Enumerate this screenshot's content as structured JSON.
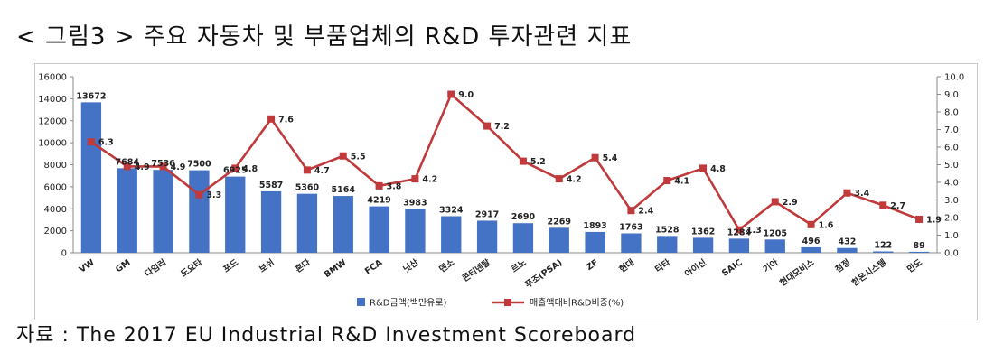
{
  "header": {
    "title": "< 그림3 > 주요 자동차 및 부품업체의 R&D 투자관련 지표"
  },
  "footer": {
    "source": "자료 : The 2017 EU Industrial R&D Investment Scoreboard"
  },
  "chart_data": {
    "type": "bar",
    "categories": [
      "VW",
      "GM",
      "다임러",
      "도요타",
      "포드",
      "보쉬",
      "혼다",
      "BMW",
      "FCA",
      "닛산",
      "덴소",
      "콘티넨탈",
      "르노",
      "푸조(PSA)",
      "ZF",
      "현대",
      "타타",
      "아이신",
      "SAIC",
      "기아",
      "현대모비스",
      "첨정",
      "한온시스템",
      "만도"
    ],
    "series": [
      {
        "name": "R&D금액(백만유로)",
        "type": "bar",
        "axis": "left",
        "color": "#4472c4",
        "values": [
          13672,
          7684,
          7536,
          7500,
          6925,
          5587,
          5360,
          5164,
          4219,
          3983,
          3324,
          2917,
          2690,
          2269,
          1893,
          1763,
          1528,
          1362,
          1284,
          1205,
          496,
          432,
          122,
          89
        ],
        "labels": [
          "13672",
          "7684",
          "7536",
          "7500",
          "6925",
          "5587",
          "5360",
          "5164",
          "4219",
          "3983",
          "3324",
          "2917",
          "2690",
          "2269",
          "1893",
          "1763",
          "1528",
          "1362",
          "1284",
          "1205",
          "496",
          "432",
          "122",
          "89"
        ]
      },
      {
        "name": "매출액대비R&D비중(%)",
        "type": "line",
        "axis": "right",
        "color": "#c0393b",
        "values": [
          6.3,
          4.9,
          4.9,
          3.3,
          4.8,
          7.6,
          4.7,
          5.5,
          3.8,
          4.2,
          9.0,
          7.2,
          5.2,
          4.2,
          5.4,
          2.4,
          4.1,
          4.8,
          1.3,
          2.9,
          1.6,
          3.4,
          2.7,
          1.9
        ],
        "labels": [
          "6.3",
          "4.9",
          "4.9",
          "3.3",
          "4.8",
          "7.6",
          "4.7",
          "5.5",
          "3.8",
          "4.2",
          "9.0",
          "7.2",
          "5.2",
          "4.2",
          "5.4",
          "2.4",
          "4.1",
          "4.8",
          "1.3",
          "2.9",
          "1.6",
          "3.4",
          "2.7",
          "1.9"
        ]
      }
    ],
    "y_left": {
      "min": 0,
      "max": 16000,
      "ticks": [
        "0",
        "2000",
        "4000",
        "6000",
        "8000",
        "10000",
        "12000",
        "14000",
        "16000"
      ]
    },
    "y_right": {
      "min": 0,
      "max": 10,
      "ticks": [
        "0.0",
        "1.0",
        "2.0",
        "3.0",
        "4.0",
        "5.0",
        "6.0",
        "7.0",
        "8.0",
        "9.0",
        "10.0"
      ]
    },
    "legend_position": "bottom",
    "grid": false
  }
}
